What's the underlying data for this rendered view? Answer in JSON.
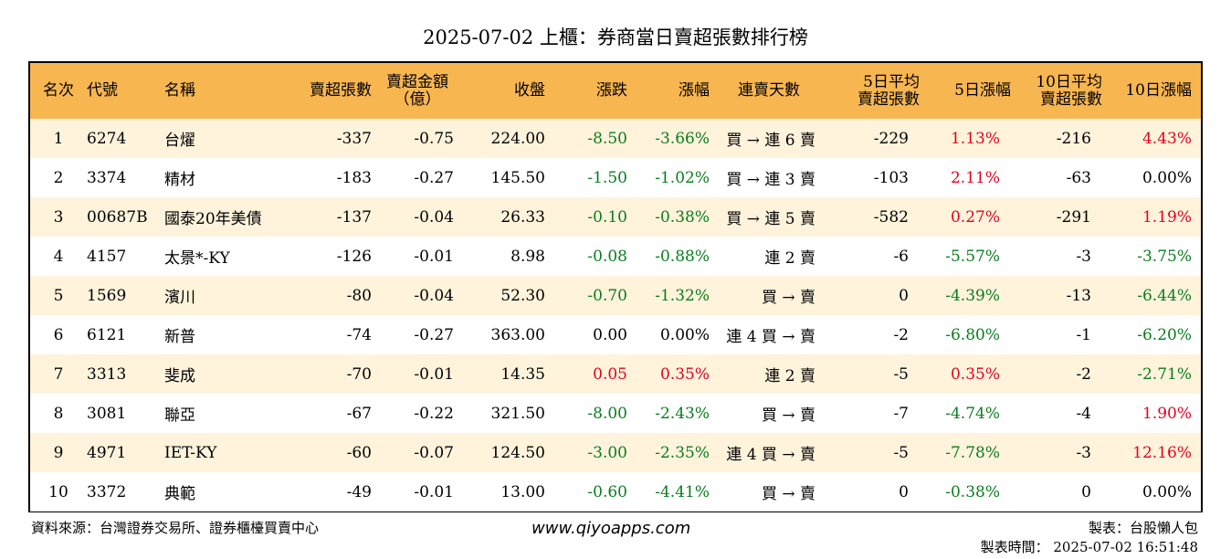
{
  "title": "2025-07-02 上櫃：券商當日賣超張數排行榜",
  "headers": {
    "rank": "名次",
    "code": "代號",
    "name": "名稱",
    "sell_lots": "賣超張數",
    "sell_amount_1": "賣超金額",
    "sell_amount_2": "（億）",
    "close": "收盤",
    "change": "漲跌",
    "change_pct": "漲幅",
    "streak": "連賣天數",
    "avg5_1": "5日平均",
    "avg5_2": "賣超張數",
    "chg5": "5日漲幅",
    "avg10_1": "10日平均",
    "avg10_2": "賣超張數",
    "chg10": "10日漲幅"
  },
  "rows": [
    {
      "rank": "1",
      "code": "6274",
      "name": "台燿",
      "sell": "-337",
      "amount": "-0.75",
      "close": "224.00",
      "change": "-8.50",
      "change_c": "green",
      "pct": "-3.66%",
      "pct_c": "green",
      "streak": "買 → 連 6 賣",
      "avg5": "-229",
      "chg5": "1.13%",
      "chg5_c": "red",
      "avg10": "-216",
      "chg10": "4.43%",
      "chg10_c": "red"
    },
    {
      "rank": "2",
      "code": "3374",
      "name": "精材",
      "sell": "-183",
      "amount": "-0.27",
      "close": "145.50",
      "change": "-1.50",
      "change_c": "green",
      "pct": "-1.02%",
      "pct_c": "green",
      "streak": "買 → 連 3 賣",
      "avg5": "-103",
      "chg5": "2.11%",
      "chg5_c": "red",
      "avg10": "-63",
      "chg10": "0.00%",
      "chg10_c": "black"
    },
    {
      "rank": "3",
      "code": "00687B",
      "name": "國泰20年美債",
      "sell": "-137",
      "amount": "-0.04",
      "close": "26.33",
      "change": "-0.10",
      "change_c": "green",
      "pct": "-0.38%",
      "pct_c": "green",
      "streak": "買 → 連 5 賣",
      "avg5": "-582",
      "chg5": "0.27%",
      "chg5_c": "red",
      "avg10": "-291",
      "chg10": "1.19%",
      "chg10_c": "red"
    },
    {
      "rank": "4",
      "code": "4157",
      "name": "太景*-KY",
      "sell": "-126",
      "amount": "-0.01",
      "close": "8.98",
      "change": "-0.08",
      "change_c": "green",
      "pct": "-0.88%",
      "pct_c": "green",
      "streak": "連 2 賣",
      "avg5": "-6",
      "chg5": "-5.57%",
      "chg5_c": "green",
      "avg10": "-3",
      "chg10": "-3.75%",
      "chg10_c": "green"
    },
    {
      "rank": "5",
      "code": "1569",
      "name": "濱川",
      "sell": "-80",
      "amount": "-0.04",
      "close": "52.30",
      "change": "-0.70",
      "change_c": "green",
      "pct": "-1.32%",
      "pct_c": "green",
      "streak": "買 → 賣",
      "avg5": "0",
      "chg5": "-4.39%",
      "chg5_c": "green",
      "avg10": "-13",
      "chg10": "-6.44%",
      "chg10_c": "green"
    },
    {
      "rank": "6",
      "code": "6121",
      "name": "新普",
      "sell": "-74",
      "amount": "-0.27",
      "close": "363.00",
      "change": "0.00",
      "change_c": "black",
      "pct": "0.00%",
      "pct_c": "black",
      "streak": "連 4 買 → 賣",
      "avg5": "-2",
      "chg5": "-6.80%",
      "chg5_c": "green",
      "avg10": "-1",
      "chg10": "-6.20%",
      "chg10_c": "green"
    },
    {
      "rank": "7",
      "code": "3313",
      "name": "斐成",
      "sell": "-70",
      "amount": "-0.01",
      "close": "14.35",
      "change": "0.05",
      "change_c": "red",
      "pct": "0.35%",
      "pct_c": "red",
      "streak": "連 2 賣",
      "avg5": "-5",
      "chg5": "0.35%",
      "chg5_c": "red",
      "avg10": "-2",
      "chg10": "-2.71%",
      "chg10_c": "green"
    },
    {
      "rank": "8",
      "code": "3081",
      "name": "聯亞",
      "sell": "-67",
      "amount": "-0.22",
      "close": "321.50",
      "change": "-8.00",
      "change_c": "green",
      "pct": "-2.43%",
      "pct_c": "green",
      "streak": "買 → 賣",
      "avg5": "-7",
      "chg5": "-4.74%",
      "chg5_c": "green",
      "avg10": "-4",
      "chg10": "1.90%",
      "chg10_c": "red"
    },
    {
      "rank": "9",
      "code": "4971",
      "name": "IET-KY",
      "sell": "-60",
      "amount": "-0.07",
      "close": "124.50",
      "change": "-3.00",
      "change_c": "green",
      "pct": "-2.35%",
      "pct_c": "green",
      "streak": "連 4 買 → 賣",
      "avg5": "-5",
      "chg5": "-7.78%",
      "chg5_c": "green",
      "avg10": "-3",
      "chg10": "12.16%",
      "chg10_c": "red"
    },
    {
      "rank": "10",
      "code": "3372",
      "name": "典範",
      "sell": "-49",
      "amount": "-0.01",
      "close": "13.00",
      "change": "-0.60",
      "change_c": "green",
      "pct": "-4.41%",
      "pct_c": "green",
      "streak": "買 → 賣",
      "avg5": "0",
      "chg5": "-0.38%",
      "chg5_c": "green",
      "avg10": "0",
      "chg10": "0.00%",
      "chg10_c": "black"
    }
  ],
  "colors": {
    "header_bg": "#F8B651",
    "odd_row_bg": "#FFF3DC",
    "up": "#E5001E",
    "down": "#0A7D1E"
  },
  "footer": {
    "source": "資料來源：台灣證券交易所、證券櫃檯買賣中心",
    "website": "www.qiyoapps.com",
    "maker": "製表：台股懶人包",
    "time": "製表時間： 2025-07-02 16:51:48"
  }
}
